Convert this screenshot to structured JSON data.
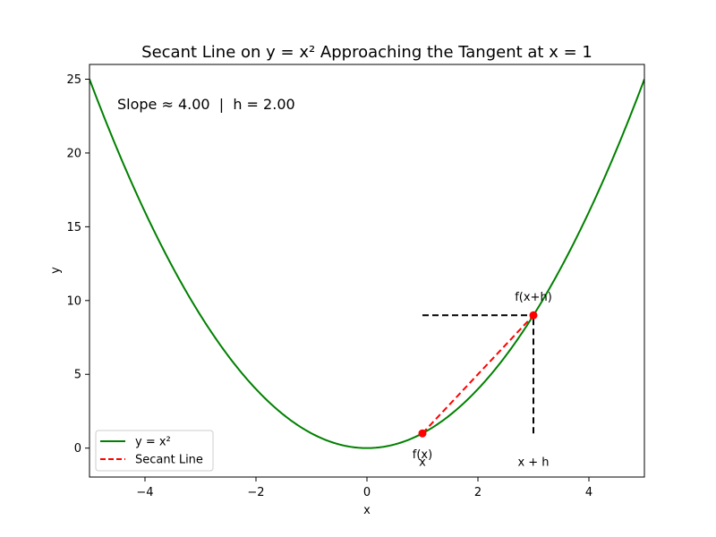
{
  "chart_data": {
    "type": "line",
    "title": "Secant Line on y = x² Approaching the Tangent at x = 1",
    "xlabel": "x",
    "ylabel": "y",
    "xlim": [
      -5,
      5
    ],
    "ylim": [
      -1.96,
      26
    ],
    "x_ticks": [
      -4,
      -2,
      0,
      2,
      4
    ],
    "x_tick_labels": [
      "−4",
      "−2",
      "0",
      "2",
      "4"
    ],
    "y_ticks": [
      0,
      5,
      10,
      15,
      20,
      25
    ],
    "y_tick_labels": [
      "0",
      "5",
      "10",
      "15",
      "20",
      "25"
    ],
    "grid": false,
    "legend_placement": "lower-left",
    "series": [
      {
        "name": "y = x²",
        "function": "x^2",
        "x_range": [
          -5,
          5
        ],
        "color": "#008000",
        "style": "solid"
      },
      {
        "name": "Secant Line",
        "x": [
          1,
          3
        ],
        "y": [
          1,
          9
        ],
        "color": "#ff0000",
        "style": "dashed"
      }
    ],
    "points": [
      {
        "x": 1,
        "y": 1,
        "color": "#ff0000"
      },
      {
        "x": 3,
        "y": 9,
        "color": "#ff0000"
      }
    ],
    "guide_lines": [
      {
        "x": [
          1,
          3
        ],
        "y": [
          9,
          9
        ],
        "color": "#000000",
        "style": "dashed"
      },
      {
        "x": [
          3,
          3
        ],
        "y": [
          1,
          9
        ],
        "color": "#000000",
        "style": "dashed"
      }
    ],
    "annotations": [
      {
        "text": "Slope ≈ 4.00  |  h = 2.00"
      },
      {
        "text": "f(x)",
        "x": 1,
        "y": -0.7
      },
      {
        "text": "f(x+h)",
        "x": 3,
        "y": 10
      },
      {
        "text": "x",
        "x": 1,
        "y": -1.2
      },
      {
        "text": "x + h",
        "x": 3,
        "y": -1.2
      }
    ]
  }
}
